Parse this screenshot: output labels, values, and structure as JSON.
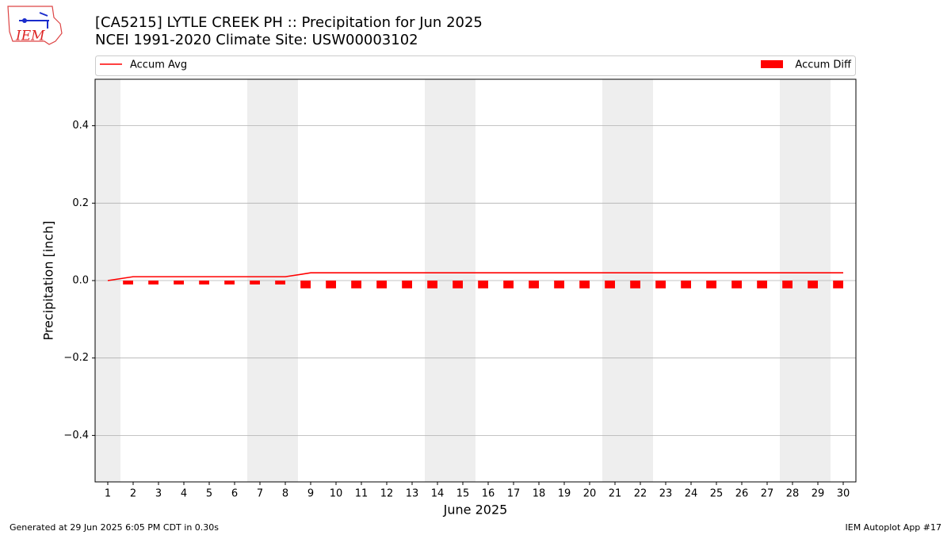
{
  "chart_data": {
    "type": "bar_line",
    "title": "[CA5215] LYTLE CREEK PH :: Precipitation for Jun 2025",
    "subtitle": "NCEI 1991-2020 Climate Site: USW00003102",
    "xlabel": "June 2025",
    "ylabel": "Precipitation [inch]",
    "x": [
      1,
      2,
      3,
      4,
      5,
      6,
      7,
      8,
      9,
      10,
      11,
      12,
      13,
      14,
      15,
      16,
      17,
      18,
      19,
      20,
      21,
      22,
      23,
      24,
      25,
      26,
      27,
      28,
      29,
      30
    ],
    "xlim": [
      0.5,
      30.5
    ],
    "xticks": [
      1,
      2,
      3,
      4,
      5,
      6,
      7,
      8,
      9,
      10,
      11,
      12,
      13,
      14,
      15,
      16,
      17,
      18,
      19,
      20,
      21,
      22,
      23,
      24,
      25,
      26,
      27,
      28,
      29,
      30
    ],
    "ylim": [
      -0.52,
      0.52
    ],
    "yticks": [
      {
        "value": -0.4,
        "label": "−0.4"
      },
      {
        "value": -0.2,
        "label": "−0.2"
      },
      {
        "value": 0,
        "label": "0.0"
      },
      0.2,
      0.4
    ],
    "grid": true,
    "shaded_days": [
      1,
      7,
      8,
      14,
      15,
      21,
      22,
      28,
      29
    ],
    "series": [
      {
        "name": "Accum Avg",
        "kind": "line",
        "color": "#ff0000",
        "values": [
          0,
          0.01,
          0.01,
          0.01,
          0.01,
          0.01,
          0.01,
          0.01,
          0.02,
          0.02,
          0.02,
          0.02,
          0.02,
          0.02,
          0.02,
          0.02,
          0.02,
          0.02,
          0.02,
          0.02,
          0.02,
          0.02,
          0.02,
          0.02,
          0.02,
          0.02,
          0.02,
          0.02,
          0.02,
          0.02
        ]
      },
      {
        "name": "Accum Diff",
        "kind": "bar",
        "color": "#ff0000",
        "values": [
          0,
          -0.01,
          -0.01,
          -0.01,
          -0.01,
          -0.01,
          -0.01,
          -0.01,
          -0.02,
          -0.02,
          -0.02,
          -0.02,
          -0.02,
          -0.02,
          -0.02,
          -0.02,
          -0.02,
          -0.02,
          -0.02,
          -0.02,
          -0.02,
          -0.02,
          -0.02,
          -0.02,
          -0.02,
          -0.02,
          -0.02,
          -0.02,
          -0.02,
          -0.02
        ]
      }
    ]
  },
  "logo_text": "IEM",
  "footer": {
    "left": "Generated at 29 Jun 2025 6:05 PM CDT in 0.30s",
    "right": "IEM Autoplot App #17"
  }
}
